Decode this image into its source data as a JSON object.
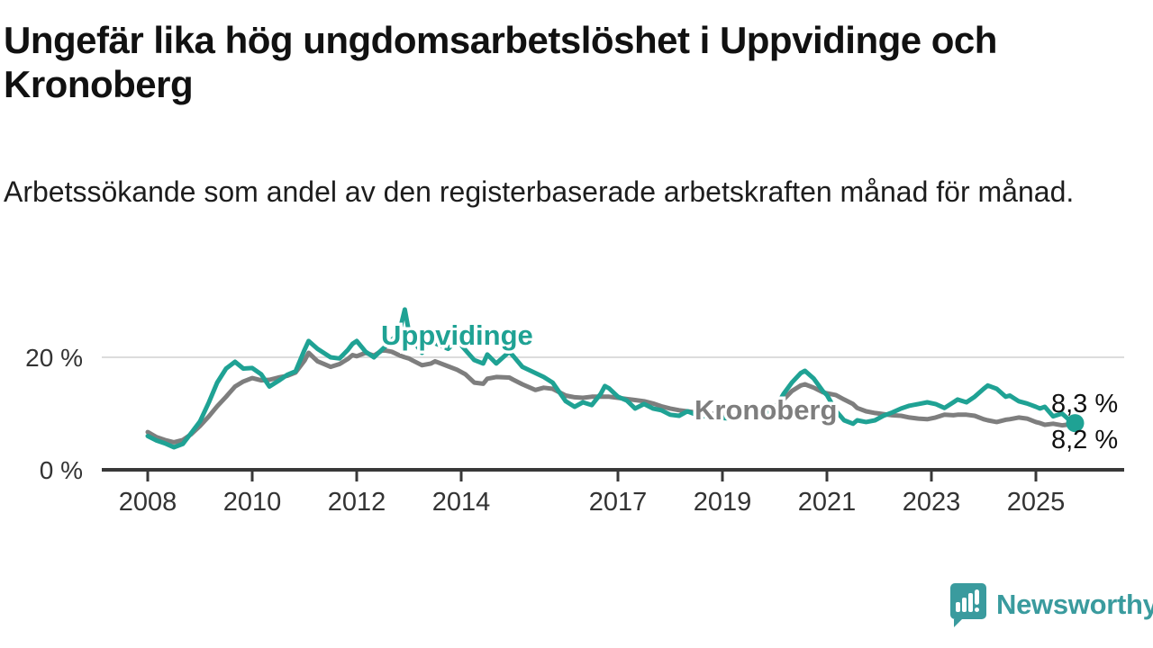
{
  "chart_data": {
    "type": "line",
    "title": "Ungefär lika hög ungdomsarbetslöshet i Uppvidinge och Kronoberg",
    "subtitle": "Arbetssökande som andel av den registerbaserade arbetskraften månad för månad.",
    "x_unit": "decimal_year",
    "xlim": [
      2007.9,
      2026.2
    ],
    "ylim": [
      0,
      29
    ],
    "grid": "horizontal gridline at 20% only",
    "legend_position": "inline series labels on lines",
    "x": [
      2008.0,
      2008.17,
      2008.33,
      2008.5,
      2008.67,
      2008.83,
      2009.0,
      2009.17,
      2009.33,
      2009.5,
      2009.67,
      2009.83,
      2010.0,
      2010.17,
      2010.33,
      2010.5,
      2010.67,
      2010.83,
      2011.0,
      2011.08,
      2011.25,
      2011.5,
      2011.67,
      2011.83,
      2011.92,
      2012.0,
      2012.17,
      2012.33,
      2012.5,
      2012.67,
      2012.83,
      2012.92,
      2013.0,
      2013.08,
      2013.25,
      2013.42,
      2013.5,
      2013.75,
      2013.92,
      2014.08,
      2014.25,
      2014.42,
      2014.5,
      2014.67,
      2014.92,
      2015.0,
      2015.17,
      2015.42,
      2015.58,
      2015.75,
      2016.0,
      2016.17,
      2016.33,
      2016.5,
      2016.67,
      2016.75,
      2016.83,
      2017.0,
      2017.17,
      2017.33,
      2017.5,
      2017.67,
      2017.83,
      2018.0,
      2018.17,
      2018.33,
      2018.5,
      2018.75,
      2019.0,
      2019.25,
      2019.5,
      2019.75,
      2020.0,
      2020.17,
      2020.33,
      2020.5,
      2020.58,
      2020.75,
      2020.92,
      2021.0,
      2021.17,
      2021.33,
      2021.5,
      2021.58,
      2021.75,
      2021.92,
      2022.08,
      2022.25,
      2022.42,
      2022.58,
      2022.75,
      2022.92,
      2023.08,
      2023.25,
      2023.42,
      2023.5,
      2023.67,
      2023.83,
      2024.0,
      2024.08,
      2024.25,
      2024.42,
      2024.5,
      2024.67,
      2024.83,
      2025.0,
      2025.08,
      2025.17,
      2025.33,
      2025.5,
      2025.67,
      2025.75
    ],
    "series": [
      {
        "name": "Kronoberg",
        "color": "#7E7E7E",
        "end_label": "8,2 %",
        "values": [
          6.7,
          5.8,
          5.3,
          4.9,
          5.3,
          6.3,
          7.8,
          9.5,
          11.3,
          13.0,
          14.8,
          15.7,
          16.3,
          15.9,
          16.0,
          16.4,
          16.7,
          17.3,
          19.4,
          20.8,
          19.3,
          18.3,
          18.8,
          19.7,
          20.4,
          20.2,
          20.8,
          20.3,
          21.3,
          21.0,
          20.3,
          20.0,
          19.8,
          19.4,
          18.6,
          18.9,
          19.3,
          18.4,
          17.8,
          17.0,
          15.5,
          15.3,
          16.2,
          16.5,
          16.4,
          16.0,
          15.2,
          14.2,
          14.6,
          14.4,
          13.2,
          12.9,
          12.8,
          13.0,
          13.0,
          13.0,
          13.0,
          12.8,
          12.6,
          12.4,
          12.2,
          11.8,
          11.3,
          10.9,
          10.6,
          10.4,
          10.2,
          10.0,
          9.8,
          9.6,
          9.7,
          10.0,
          10.8,
          12.5,
          14.0,
          15.0,
          15.2,
          14.6,
          13.8,
          13.6,
          13.3,
          12.5,
          11.7,
          11.0,
          10.4,
          10.1,
          9.9,
          9.7,
          9.6,
          9.3,
          9.1,
          9.0,
          9.3,
          9.8,
          9.7,
          9.8,
          9.8,
          9.6,
          9.0,
          8.8,
          8.5,
          8.9,
          9.0,
          9.3,
          9.1,
          8.5,
          8.3,
          8.0,
          8.2,
          7.9,
          8.1,
          8.2
        ]
      },
      {
        "name": "Uppvidinge",
        "color": "#1FA294",
        "end_label": "8,3 %",
        "values": [
          6.0,
          5.2,
          4.7,
          4.0,
          4.6,
          6.5,
          8.6,
          12.0,
          15.5,
          18.0,
          19.2,
          18.0,
          18.1,
          17.0,
          14.8,
          15.8,
          16.9,
          17.5,
          21.3,
          22.9,
          21.5,
          20.0,
          19.8,
          21.3,
          22.4,
          22.9,
          21.0,
          20.0,
          21.5,
          23.0,
          25.0,
          28.5,
          24.5,
          23.0,
          20.8,
          23.5,
          22.5,
          21.5,
          23.0,
          21.3,
          19.5,
          18.9,
          20.5,
          18.9,
          21.0,
          20.2,
          18.3,
          17.2,
          16.5,
          15.5,
          12.2,
          11.2,
          12.0,
          11.5,
          13.5,
          14.9,
          14.5,
          13.0,
          12.3,
          10.9,
          11.7,
          10.9,
          10.6,
          9.8,
          9.6,
          10.4,
          9.8,
          9.4,
          9.2,
          9.1,
          9.3,
          9.7,
          10.8,
          13.5,
          15.5,
          17.2,
          17.6,
          16.2,
          14.0,
          13.3,
          10.5,
          8.8,
          8.2,
          8.8,
          8.5,
          8.8,
          9.6,
          10.2,
          10.9,
          11.4,
          11.7,
          12.0,
          11.7,
          11.0,
          12.0,
          12.5,
          12.0,
          13.0,
          14.4,
          15.0,
          14.4,
          13.0,
          13.2,
          12.2,
          11.8,
          11.2,
          10.9,
          11.2,
          9.5,
          10.0,
          8.6,
          8.3
        ]
      }
    ],
    "x_ticks": [
      2008,
      2010,
      2012,
      2014,
      2017,
      2019,
      2021,
      2023,
      2025
    ],
    "x_tick_labels": [
      "2008",
      "2010",
      "2012",
      "2014",
      "2017",
      "2019",
      "2021",
      "2023",
      "2025"
    ],
    "y_ticks": [
      {
        "value": 0,
        "label": "0 %"
      },
      {
        "value": 20,
        "label": "20 %"
      }
    ]
  },
  "branding": {
    "name": "Newsworthy",
    "color": "#3A9B9E"
  },
  "colors": {
    "axis": "#383838",
    "gridline": "#dcdcdc",
    "tick_label": "#333333",
    "end_label": "#111111",
    "background": "#ffffff"
  }
}
